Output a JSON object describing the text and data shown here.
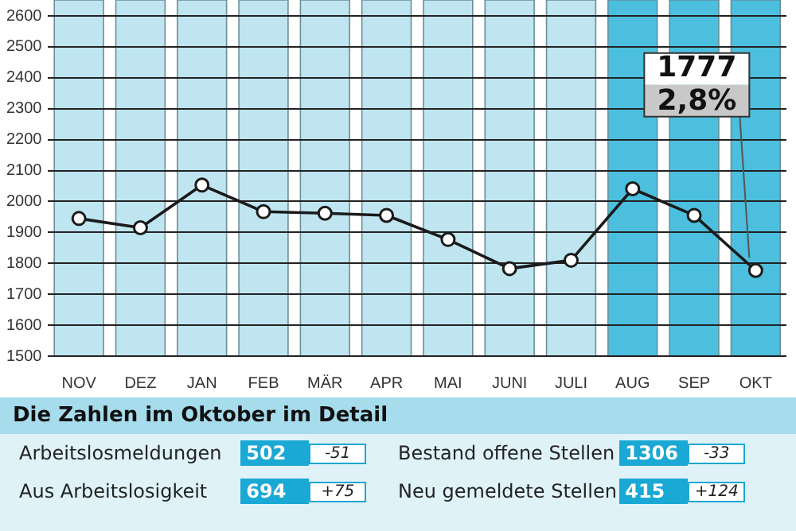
{
  "chart_data": {
    "type": "line",
    "categories": [
      "NOV",
      "DEZ",
      "JAN",
      "FEB",
      "MÄR",
      "APR",
      "MAI",
      "JUNI",
      "JULI",
      "AUG",
      "SEP",
      "OKT"
    ],
    "series": [
      {
        "color": "#1a1a1a",
        "values": [
          1945,
          1915,
          2053,
          1967,
          1962,
          1955,
          1877,
          1783,
          1810,
          2041,
          1955,
          1777
        ],
        "value_labels": [
          null,
          null,
          null,
          null,
          null,
          null,
          null,
          null,
          null,
          null,
          null,
          "1777"
        ]
      }
    ],
    "ylim": [
      1500,
      2600
    ],
    "yticks": [
      1500,
      1600,
      1700,
      1800,
      1900,
      2000,
      2100,
      2200,
      2300,
      2400,
      2500,
      2600
    ],
    "grid": "y",
    "marker": "circle",
    "legend": false,
    "bands": [
      {
        "axis": "x",
        "from": "NOV",
        "to": "NOV",
        "color": "#bfe5f1"
      },
      {
        "axis": "x",
        "from": "DEZ",
        "to": "DEZ",
        "color": "#bfe5f1"
      },
      {
        "axis": "x",
        "from": "JAN",
        "to": "JAN",
        "color": "#bfe5f1"
      },
      {
        "axis": "x",
        "from": "FEB",
        "to": "FEB",
        "color": "#bfe5f1"
      },
      {
        "axis": "x",
        "from": "MÄR",
        "to": "MÄR",
        "color": "#bfe5f1"
      },
      {
        "axis": "x",
        "from": "APR",
        "to": "APR",
        "color": "#bfe5f1"
      },
      {
        "axis": "x",
        "from": "MAI",
        "to": "MAI",
        "color": "#bfe5f1"
      },
      {
        "axis": "x",
        "from": "JUNI",
        "to": "JUNI",
        "color": "#bfe5f1"
      },
      {
        "axis": "x",
        "from": "JULI",
        "to": "JULI",
        "color": "#bfe5f1"
      },
      {
        "axis": "x",
        "from": "AUG",
        "to": "AUG",
        "color": "#4bbfdd"
      },
      {
        "axis": "x",
        "from": "SEP",
        "to": "SEP",
        "color": "#4bbfdd"
      },
      {
        "axis": "x",
        "from": "OKT",
        "to": "OKT",
        "color": "#4bbfdd"
      }
    ],
    "annotations": [
      {
        "text": "2,8%",
        "x": "OKT",
        "y": 1777
      },
      "Die Zahlen im Oktober im Detail",
      "Arbeitslosmeldungen",
      "502",
      "-51",
      "Bestand offene Stellen",
      "1306",
      "-33",
      "Aus Arbeitslosigkeit",
      "694",
      "+75",
      "Neu gemeldete Stellen",
      "415",
      "+124"
    ]
  }
}
